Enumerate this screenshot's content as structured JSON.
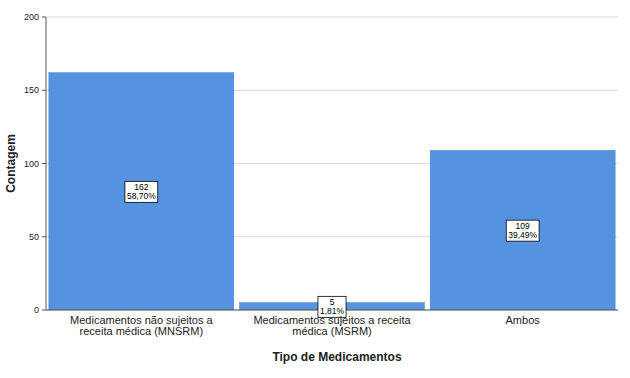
{
  "chart_data": {
    "type": "bar",
    "x_label": "Tipo de Medicamentos",
    "y_label": "Contagem",
    "categories": [
      "Medicamentos não sujeitos a receita médica (MNSRM)",
      "Medicamentos sujeitos a receita médica (MSRM)",
      "Ambos"
    ],
    "values": [
      162,
      5,
      109
    ],
    "percent_labels": [
      "58,70%",
      "1,81%",
      "39,49%"
    ],
    "color": "#5592e0",
    "ylim": [
      0,
      200
    ],
    "yticks": [
      0,
      50,
      100,
      150,
      200
    ],
    "grid": true,
    "data_labels": true
  }
}
